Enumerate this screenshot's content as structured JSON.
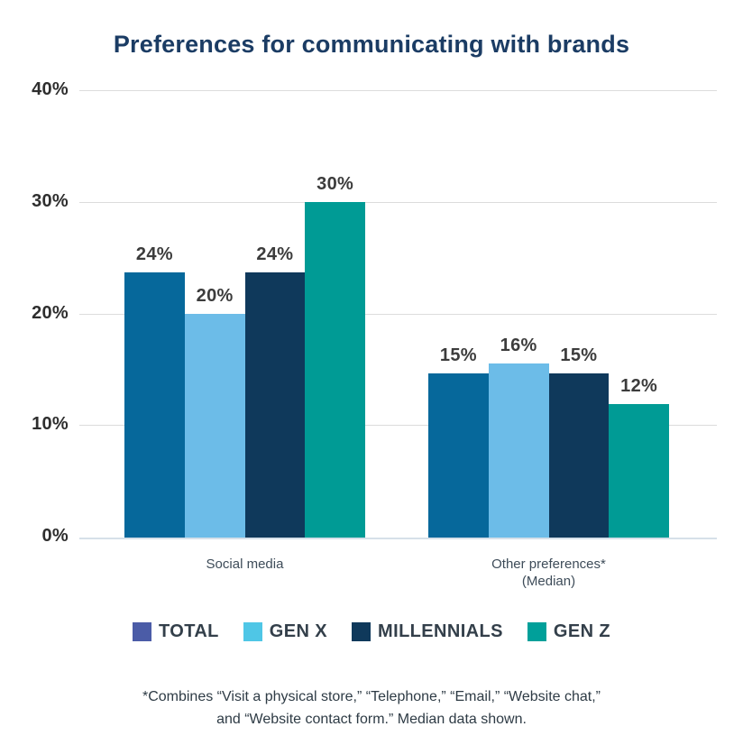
{
  "title": "Preferences for communicating with brands",
  "chart_data": {
    "type": "bar",
    "title": "Preferences for communicating with brands",
    "categories": [
      "Social media",
      "Other preferences* (Median)"
    ],
    "category_label_lines": [
      [
        "Social media"
      ],
      [
        "Other preferences*",
        "(Median)"
      ]
    ],
    "series": [
      {
        "name": "TOTAL",
        "values": [
          24,
          15
        ],
        "labels": [
          "24%",
          "15%"
        ],
        "plot_values": [
          23.7,
          14.6
        ],
        "bar_color": "#06689b",
        "legend_color": "#4b5ca7"
      },
      {
        "name": "GEN X",
        "values": [
          20,
          16
        ],
        "labels": [
          "20%",
          "16%"
        ],
        "plot_values": [
          20.0,
          15.5
        ],
        "bar_color": "#6cbce8",
        "legend_color": "#4fc6e6"
      },
      {
        "name": "MILLENNIALS",
        "values": [
          24,
          15
        ],
        "labels": [
          "24%",
          "15%"
        ],
        "plot_values": [
          23.7,
          14.6
        ],
        "bar_color": "#0f395b",
        "legend_color": "#0f395b"
      },
      {
        "name": "GEN Z",
        "values": [
          30,
          12
        ],
        "labels": [
          "30%",
          "12%"
        ],
        "plot_values": [
          30.0,
          11.9
        ],
        "bar_color": "#009b95",
        "legend_color": "#00a09a"
      }
    ],
    "xlabel": "",
    "ylabel": "",
    "ylim": [
      0,
      40
    ],
    "y_ticks": [
      "0%",
      "10%",
      "20%",
      "30%",
      "40%"
    ],
    "y_tick_values": [
      0,
      10,
      20,
      30,
      40
    ],
    "grid": true,
    "legend_position": "bottom"
  },
  "footnote": {
    "lines": [
      "*Combines “Visit a physical store,” “Telephone,” “Email,” “Website chat,”",
      "and “Website contact form.” Median data shown."
    ]
  },
  "colors": {
    "title": "#1b3c64",
    "gridline": "#dcdcdc",
    "baseline": "#d6e0e9",
    "axis_tick_text": "#2e2e2e",
    "bar_value_text": "#3c3c3c",
    "category_text": "#3e4c59",
    "legend_text": "#333f4a",
    "footnote_text": "#2e3b45"
  }
}
